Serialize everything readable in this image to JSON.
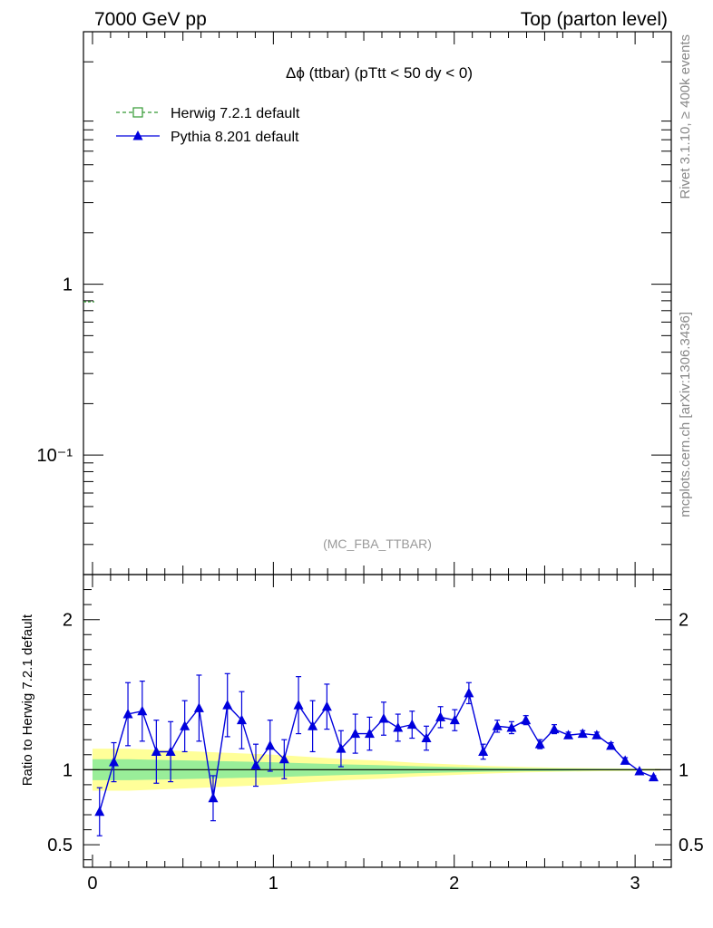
{
  "header": {
    "left": "7000 GeV pp",
    "right": "Top (parton level)"
  },
  "side": {
    "rivet": "Rivet 3.1.10, ≥ 400k events",
    "mcplots": "mcplots.cern.ch [arXiv:1306.3436]"
  },
  "main_panel": {
    "title": "Δϕ (ttbar) (pTtt < 50 dy < 0)",
    "watermark": "(MC_FBA_TTBAR)",
    "yscale": "log",
    "ylim": [
      0.02,
      30
    ],
    "y_ticks": [
      {
        "value": 1,
        "label": "1"
      },
      {
        "value": 0.1,
        "label": "10⁻¹"
      }
    ],
    "legend": [
      {
        "name": "Herwig 7.2.1 default",
        "color": "#339933",
        "style": "dashed",
        "marker": "open-square"
      },
      {
        "name": "Pythia 8.201 default",
        "color": "#0000dd",
        "style": "solid",
        "marker": "filled-triangle"
      }
    ]
  },
  "colors": {
    "herwig": "#339933",
    "pythia": "#0000dd",
    "band_outer": "#ffff99",
    "band_inner": "#99ee99"
  },
  "chart_data": {
    "type": "line",
    "xlim": [
      -0.05,
      3.2
    ],
    "x_ticks": [
      {
        "value": 0,
        "label": "0"
      },
      {
        "value": 1,
        "label": "1"
      },
      {
        "value": 2,
        "label": "2"
      },
      {
        "value": 3,
        "label": "3"
      }
    ],
    "ratio_panel": {
      "ylabel": "Ratio to Herwig 7.2.1 default",
      "ylim": [
        0.35,
        2.3
      ],
      "y_ticks": [
        {
          "value": 0.5,
          "label": "0.5"
        },
        {
          "value": 1,
          "label": "1"
        },
        {
          "value": 2,
          "label": "2"
        }
      ],
      "reference_line": 1.0
    },
    "series": [
      {
        "name": "Pythia 8.201 default",
        "x": [
          0.039,
          0.118,
          0.196,
          0.275,
          0.353,
          0.432,
          0.51,
          0.589,
          0.667,
          0.746,
          0.825,
          0.903,
          0.982,
          1.06,
          1.139,
          1.217,
          1.296,
          1.374,
          1.453,
          1.532,
          1.61,
          1.689,
          1.767,
          1.846,
          1.924,
          2.003,
          2.081,
          2.16,
          2.238,
          2.317,
          2.396,
          2.474,
          2.553,
          2.631,
          2.71,
          2.788,
          2.867,
          2.945,
          3.024,
          3.102
        ],
        "y": [
          0.72,
          1.05,
          1.37,
          1.39,
          1.12,
          1.12,
          1.29,
          1.41,
          0.81,
          1.43,
          1.33,
          1.03,
          1.16,
          1.07,
          1.43,
          1.29,
          1.42,
          1.14,
          1.24,
          1.24,
          1.34,
          1.28,
          1.3,
          1.21,
          1.35,
          1.33,
          1.51,
          1.12,
          1.29,
          1.28,
          1.33,
          1.17,
          1.27,
          1.23,
          1.24,
          1.23,
          1.16,
          1.06,
          0.99,
          0.95
        ],
        "yerr": [
          0.16,
          0.13,
          0.21,
          0.2,
          0.21,
          0.2,
          0.17,
          0.22,
          0.15,
          0.21,
          0.19,
          0.14,
          0.17,
          0.13,
          0.19,
          0.17,
          0.15,
          0.12,
          0.13,
          0.11,
          0.11,
          0.09,
          0.09,
          0.08,
          0.07,
          0.07,
          0.07,
          0.05,
          0.04,
          0.04,
          0.03,
          0.03,
          0.03,
          0.02,
          0.02,
          0.02,
          0.02,
          0.02,
          0.01,
          0.01
        ]
      }
    ],
    "uncertainty_band": {
      "x": [
        0.0,
        0.2,
        0.4,
        0.6,
        0.8,
        1.0,
        1.2,
        1.4,
        1.6,
        1.8,
        2.0,
        2.2,
        2.4,
        2.6,
        2.8,
        3.0,
        3.14
      ],
      "outer": [
        0.14,
        0.14,
        0.13,
        0.12,
        0.11,
        0.1,
        0.085,
        0.07,
        0.06,
        0.045,
        0.035,
        0.025,
        0.018,
        0.013,
        0.01,
        0.008,
        0.007
      ],
      "inner": [
        0.07,
        0.07,
        0.065,
        0.06,
        0.055,
        0.05,
        0.042,
        0.035,
        0.03,
        0.023,
        0.018,
        0.013,
        0.01,
        0.008,
        0.006,
        0.005,
        0.004
      ]
    }
  }
}
